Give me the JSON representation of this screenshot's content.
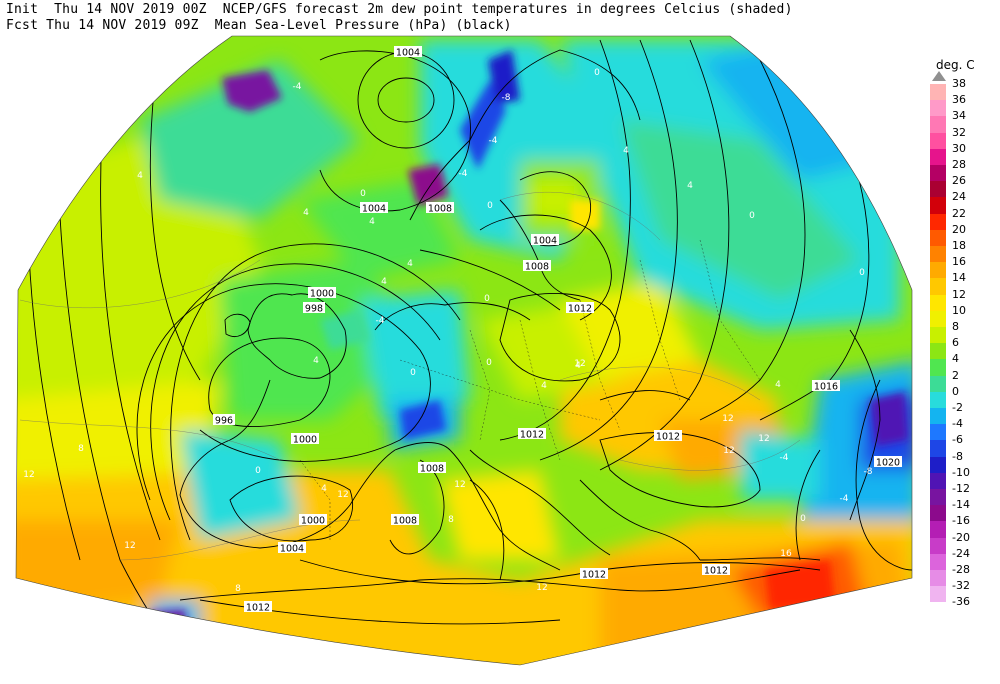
{
  "header": {
    "line1": "Init  Thu 14 NOV 2019 00Z  NCEP/GFS forecast 2m dew point temperatures in degrees Celcius (shaded)",
    "line2": "Fcst Thu 14 NOV 2019 09Z  Mean Sea-Level Pressure (hPa) (black)"
  },
  "legend": {
    "unit": "deg. C",
    "entries": [
      {
        "label": "38",
        "color": "#a0a0a0"
      },
      {
        "label": "36",
        "color": "#ffb4b4"
      },
      {
        "label": "34",
        "color": "#ff9ac8"
      },
      {
        "label": "32",
        "color": "#ff78b4"
      },
      {
        "label": "30",
        "color": "#ff50a0"
      },
      {
        "label": "28",
        "color": "#e6148c"
      },
      {
        "label": "26",
        "color": "#b40064"
      },
      {
        "label": "24",
        "color": "#aa0032"
      },
      {
        "label": "22",
        "color": "#d2000a"
      },
      {
        "label": "20",
        "color": "#ff2800"
      },
      {
        "label": "18",
        "color": "#ff5a00"
      },
      {
        "label": "16",
        "color": "#ff8200"
      },
      {
        "label": "14",
        "color": "#ffaa00"
      },
      {
        "label": "12",
        "color": "#ffc800"
      },
      {
        "label": "10",
        "color": "#ffe600"
      },
      {
        "label": "8",
        "color": "#f0f000"
      },
      {
        "label": "6",
        "color": "#c8f000"
      },
      {
        "label": "4",
        "color": "#8ce614"
      },
      {
        "label": "2",
        "color": "#50e650"
      },
      {
        "label": "0",
        "color": "#3cdc96"
      },
      {
        "label": "-2",
        "color": "#28dcdc"
      },
      {
        "label": "-4",
        "color": "#14b4f0"
      },
      {
        "label": "-6",
        "color": "#1e78ff"
      },
      {
        "label": "-8",
        "color": "#1e46e6"
      },
      {
        "label": "-10",
        "color": "#1e1ec8"
      },
      {
        "label": "-12",
        "color": "#5014b4"
      },
      {
        "label": "-14",
        "color": "#7814a0"
      },
      {
        "label": "-16",
        "color": "#8c0a8c"
      },
      {
        "label": "-20",
        "color": "#b41eb4"
      },
      {
        "label": "-24",
        "color": "#c83cc8"
      },
      {
        "label": "-28",
        "color": "#dc64dc"
      },
      {
        "label": "-32",
        "color": "#e68ce6"
      },
      {
        "label": "-36",
        "color": "#f0b4f0"
      }
    ]
  },
  "isobar_labels": [
    "1004",
    "1004",
    "1008",
    "1004",
    "1008",
    "1012",
    "1000",
    "998",
    "996",
    "1000",
    "1012",
    "1012",
    "1016",
    "1020",
    "1008",
    "1000",
    "1004",
    "1008",
    "1012",
    "1012",
    "1012"
  ],
  "dewpoint_labels": [
    "-4",
    "-8",
    "0",
    "-4",
    "4",
    "4",
    "4",
    "0",
    "-4",
    "4",
    "4",
    "0",
    "4",
    "0",
    "0",
    "4",
    "-4",
    "0",
    "4",
    "0",
    "4",
    "0",
    "12",
    "12",
    "4",
    "-4",
    "-8",
    "0",
    "0",
    "-4",
    "12",
    "4",
    "12",
    "8",
    "12",
    "8",
    "12",
    "12",
    "8",
    "12",
    "12",
    "16",
    "4"
  ]
}
